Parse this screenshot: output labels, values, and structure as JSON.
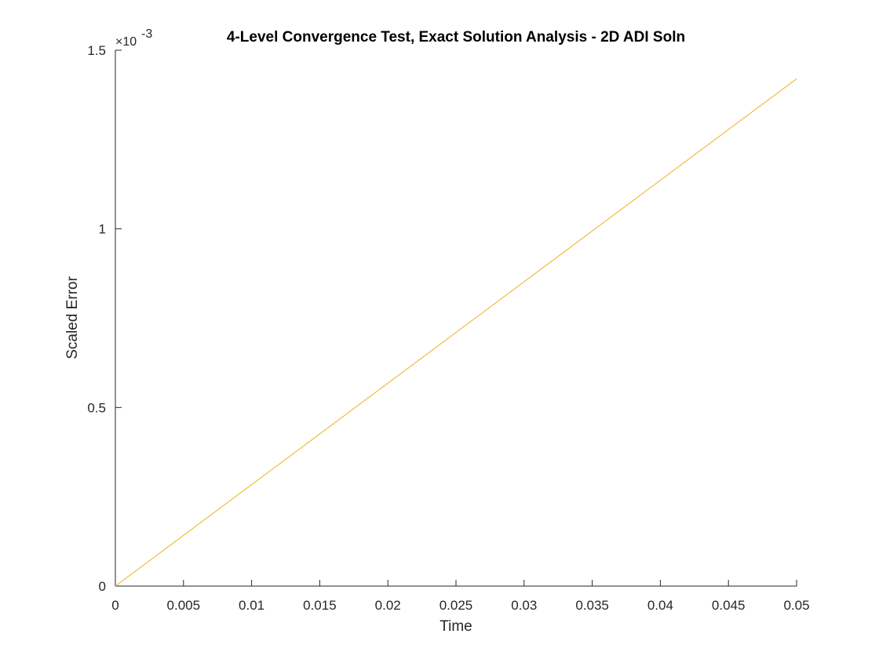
{
  "chart_data": {
    "type": "line",
    "title": "4-Level Convergence Test, Exact Solution Analysis - 2D  ADI Soln",
    "xlabel": "Time",
    "ylabel": "Scaled Error",
    "xlim": [
      0,
      0.05
    ],
    "ylim": [
      0,
      0.0015
    ],
    "x_ticks": [
      0,
      0.005,
      0.01,
      0.015,
      0.02,
      0.025,
      0.03,
      0.035,
      0.04,
      0.045,
      0.05
    ],
    "x_tick_labels": [
      "0",
      "0.005",
      "0.01",
      "0.015",
      "0.02",
      "0.025",
      "0.03",
      "0.035",
      "0.04",
      "0.045",
      "0.05"
    ],
    "y_ticks": [
      0,
      0.0005,
      0.001,
      0.0015
    ],
    "y_tick_labels": [
      "0",
      "0.5",
      "1",
      "1.5"
    ],
    "y_exponent_label": "×10",
    "y_exponent_power": "-3",
    "grid": false,
    "legend": false,
    "line_color": "#EDB120",
    "series": [
      {
        "x": [
          0,
          0.05
        ],
        "y": [
          0,
          0.00142
        ]
      }
    ]
  }
}
